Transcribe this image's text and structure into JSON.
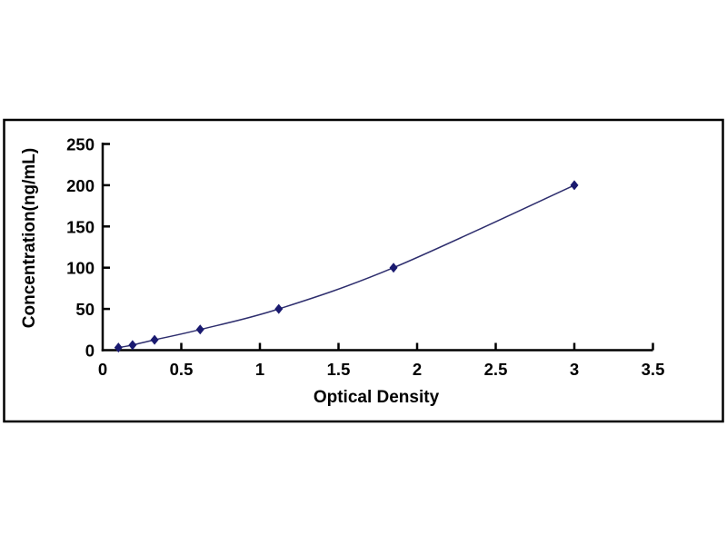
{
  "chart_data": {
    "type": "line",
    "xlabel": "Optical Density",
    "ylabel": "Concentration(ng/mL)",
    "x": [
      0.1,
      0.19,
      0.33,
      0.62,
      1.12,
      1.85,
      3.0
    ],
    "y": [
      3.12,
      6.25,
      12.5,
      25,
      50,
      100,
      200
    ],
    "xlim": [
      0,
      3.5
    ],
    "ylim": [
      0,
      250
    ],
    "x_ticks": [
      0,
      0.5,
      1,
      1.5,
      2,
      2.5,
      3,
      3.5
    ],
    "x_tick_labels": [
      "0",
      "0.5",
      "1",
      "1.5",
      "2",
      "2.5",
      "3",
      "3.5"
    ],
    "y_ticks": [
      0,
      50,
      100,
      150,
      200,
      250
    ],
    "y_tick_labels": [
      "0",
      "50",
      "100",
      "150",
      "200",
      "250"
    ],
    "grid": false,
    "legend": "none",
    "marker": "diamond",
    "colors": {
      "line": "#2e2e6e",
      "marker": "#1a1a70",
      "axis": "#000000",
      "frame": "#000000",
      "background": "#ffffff",
      "text": "#000000"
    }
  }
}
